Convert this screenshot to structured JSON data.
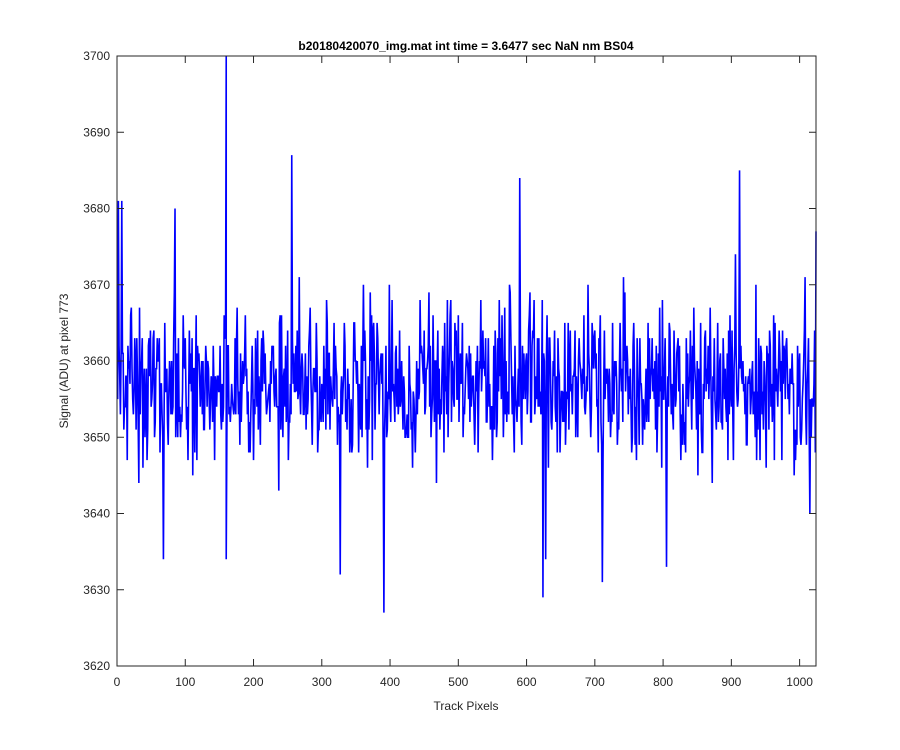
{
  "chart_data": {
    "type": "line",
    "title": "b20180420070_img.mat int time = 3.6477 sec  NaN nm BS04",
    "xlabel": "Track Pixels",
    "ylabel": "Signal (ADU) at pixel 773",
    "xlim": [
      0,
      1024
    ],
    "ylim": [
      3620,
      3700
    ],
    "xticks": [
      0,
      100,
      200,
      300,
      400,
      500,
      600,
      700,
      800,
      900,
      1000
    ],
    "yticks": [
      3620,
      3630,
      3640,
      3650,
      3660,
      3670,
      3680,
      3690,
      3700
    ],
    "grid": false,
    "series_color": "#0000ff",
    "series": [
      {
        "name": "",
        "x_start": 1,
        "x_step": 1,
        "count": 1024,
        "mean": 3657,
        "note_range": [
          3627,
          3700
        ],
        "spikes": [
          {
            "x": 160,
            "y": 3700
          },
          {
            "x": 160,
            "y": 3634
          },
          {
            "x": 256,
            "y": 3687
          },
          {
            "x": 391,
            "y": 3627
          },
          {
            "x": 624,
            "y": 3629
          },
          {
            "x": 628,
            "y": 3634
          },
          {
            "x": 711,
            "y": 3631
          },
          {
            "x": 912,
            "y": 3685
          },
          {
            "x": 590,
            "y": 3684
          },
          {
            "x": 805,
            "y": 3633
          },
          {
            "x": 68,
            "y": 3634
          },
          {
            "x": 327,
            "y": 3632
          },
          {
            "x": 2,
            "y": 3681
          },
          {
            "x": 7,
            "y": 3681
          },
          {
            "x": 85,
            "y": 3680
          },
          {
            "x": 1024,
            "y": 3677
          },
          {
            "x": 1015,
            "y": 3640
          }
        ]
      }
    ]
  }
}
